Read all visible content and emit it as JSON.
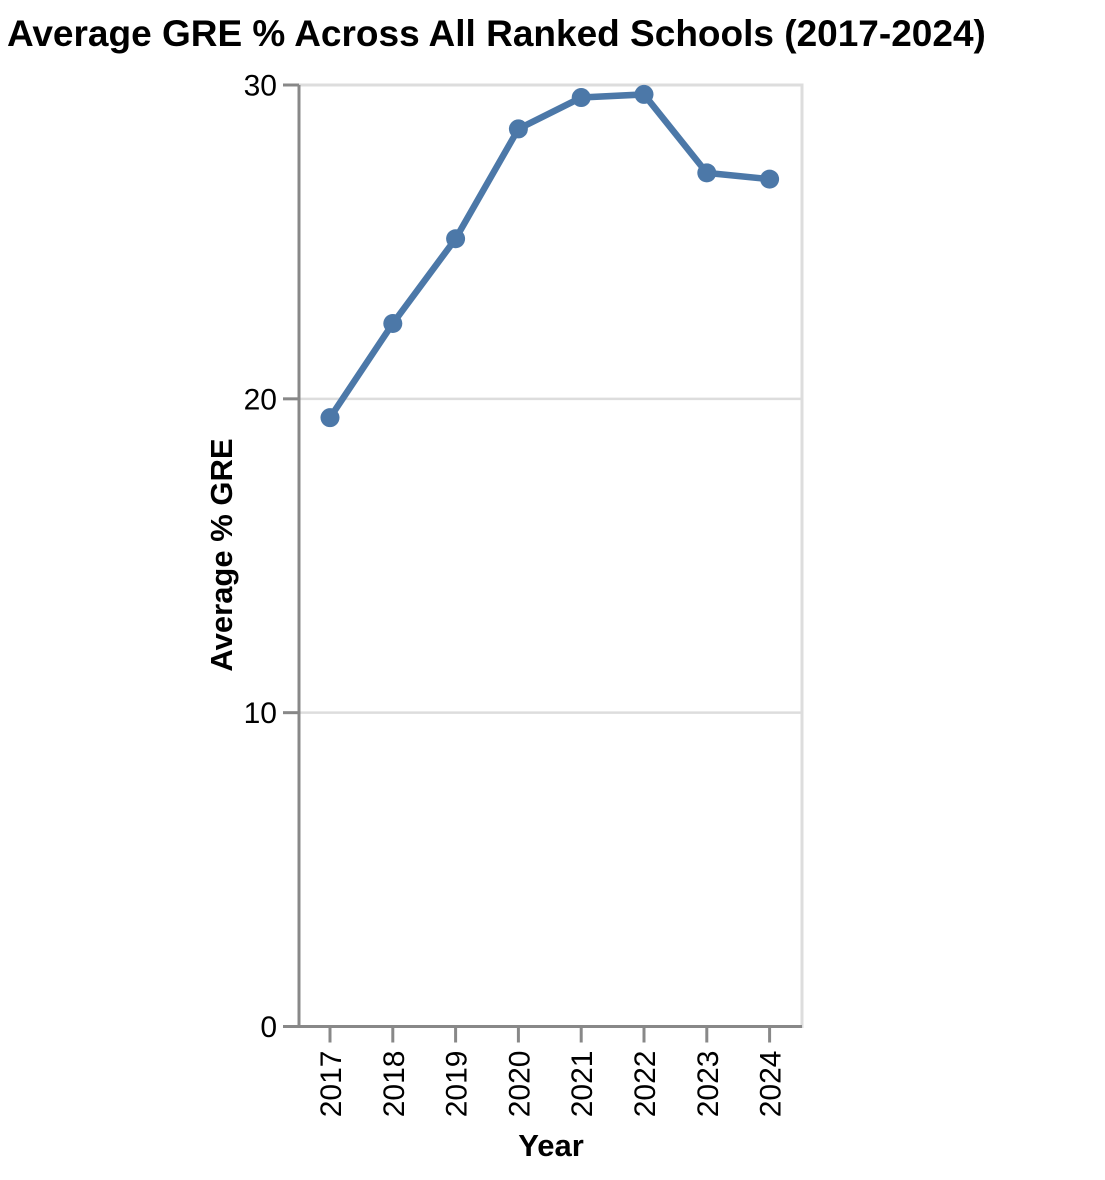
{
  "page": {
    "title": "Average GRE % Across All Ranked Schools (2017-2024)"
  },
  "chart_data": {
    "type": "line",
    "x": [
      "2017",
      "2018",
      "2019",
      "2020",
      "2021",
      "2022",
      "2023",
      "2024"
    ],
    "series": [
      {
        "name": "Average % GRE",
        "values": [
          19.4,
          22.4,
          25.1,
          28.6,
          29.6,
          29.7,
          27.2,
          27.0
        ]
      }
    ],
    "title": "Average GRE % Across All Ranked Schools (2017-2024)",
    "xlabel": "Year",
    "ylabel": "Average % GRE",
    "ylim": [
      0,
      30
    ],
    "yticks": [
      0,
      10,
      20,
      30
    ],
    "grid": true,
    "legend": "none",
    "marker": "circle",
    "colors": {
      "line": "#4c78a8",
      "axis": "#888888",
      "grid": "#dddddd",
      "text": "#000000",
      "background": "#ffffff"
    }
  }
}
